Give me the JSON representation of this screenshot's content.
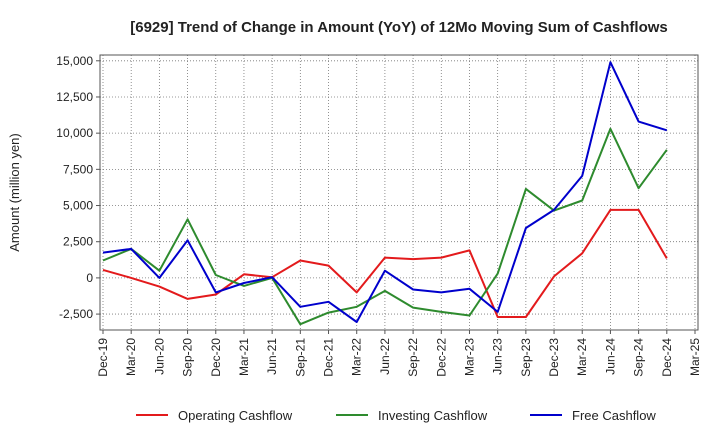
{
  "chart_data": {
    "type": "line",
    "title": "[6929]  Trend of Change in Amount (YoY) of 12Mo Moving Sum of Cashflows",
    "xlabel": "",
    "ylabel": "Amount (million yen)",
    "ylim": [
      -3600,
      15400
    ],
    "yticks": [
      15000,
      12500,
      10000,
      7500,
      5000,
      2500,
      0,
      -2500
    ],
    "ytick_labels": [
      "15,000",
      "12,500",
      "10,000",
      "7,500",
      "5,000",
      "2,500",
      "0",
      "-2,500"
    ],
    "categories": [
      "Dec-19",
      "Mar-20",
      "Jun-20",
      "Sep-20",
      "Dec-20",
      "Mar-21",
      "Jun-21",
      "Sep-21",
      "Dec-21",
      "Mar-22",
      "Jun-22",
      "Sep-22",
      "Dec-22",
      "Mar-23",
      "Jun-23",
      "Sep-23",
      "Dec-23",
      "Mar-24",
      "Jun-24",
      "Sep-24",
      "Dec-24",
      "Mar-25"
    ],
    "grid": true,
    "legend_position": "bottom",
    "series": [
      {
        "name": "Operating Cashflow",
        "color": "#e31a1c",
        "values": [
          550,
          0,
          -600,
          -1450,
          -1150,
          250,
          50,
          1200,
          850,
          -1000,
          1400,
          1300,
          1400,
          1900,
          -2700,
          -2700,
          100,
          1700,
          4700,
          4700,
          1350,
          null
        ]
      },
      {
        "name": "Investing Cashflow",
        "color": "#2e8b2e",
        "values": [
          1200,
          2000,
          500,
          4050,
          200,
          -550,
          0,
          -3200,
          -2400,
          -2000,
          -900,
          -2050,
          -2350,
          -2600,
          300,
          6150,
          4650,
          5350,
          10300,
          6200,
          8850,
          null
        ]
      },
      {
        "name": "Free Cashflow",
        "color": "#0000cc",
        "values": [
          1750,
          2000,
          0,
          2600,
          -1000,
          -350,
          50,
          -2000,
          -1650,
          -3050,
          500,
          -800,
          -1000,
          -750,
          -2350,
          3450,
          4700,
          7050,
          14900,
          10800,
          10200,
          null
        ]
      }
    ]
  }
}
